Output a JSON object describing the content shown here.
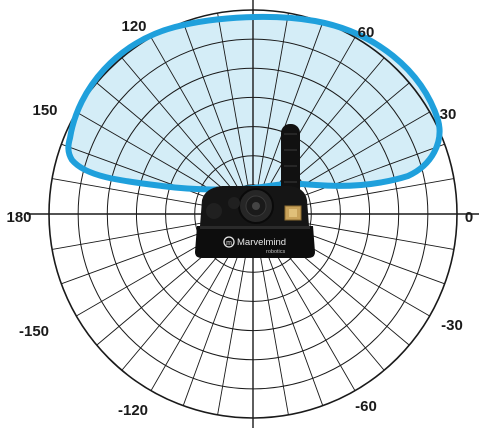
{
  "diagram": {
    "angle_labels": [
      {
        "key": "a0",
        "text": "0"
      },
      {
        "key": "a30",
        "text": "30"
      },
      {
        "key": "a60",
        "text": "60"
      },
      {
        "key": "a120",
        "text": "120"
      },
      {
        "key": "a150",
        "text": "150"
      },
      {
        "key": "a180",
        "text": "180"
      },
      {
        "key": "am150",
        "text": "-150"
      },
      {
        "key": "am120",
        "text": "-120"
      },
      {
        "key": "am60",
        "text": "-60"
      },
      {
        "key": "am30",
        "text": "-30"
      }
    ],
    "radial_spoke_step_deg": 10,
    "ring_count": 7,
    "coverage_color": "#1fa0dc",
    "coverage_fill": "#d4edf7"
  },
  "device": {
    "brand": "Marvelmind",
    "brand_sub": "robotics"
  }
}
